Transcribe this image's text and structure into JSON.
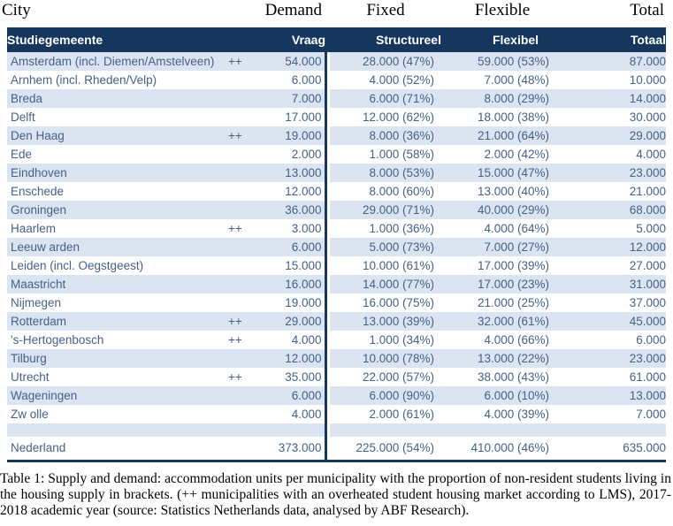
{
  "colors": {
    "header_bg": "#17365D",
    "row_alt_bg": "#DBE5F1",
    "row_bg": "#FFFFFF",
    "table_text": "#466088",
    "header_text": "#FFFFFF",
    "divider": "#17365D",
    "caption_text": "#000000"
  },
  "english_header": {
    "city": "City",
    "demand": "Demand",
    "fixed": "Fixed",
    "flexible": "Flexible",
    "total": "Total"
  },
  "table": {
    "headers": {
      "city": "Studiegemeente",
      "demand": "Vraag",
      "fixed": "Structureel",
      "flexible": "Flexibel",
      "total": "Totaal"
    },
    "rows": [
      {
        "city": "Amsterdam (incl. Diemen/Amstelveen)",
        "marker": "++",
        "demand": "54.000",
        "fixed": "28.000 (47%)",
        "flexible": "59.000 (53%)",
        "total": "87.000"
      },
      {
        "city": "Arnhem (incl. Rheden/Velp)",
        "marker": "",
        "demand": "6.000",
        "fixed": "4.000 (52%)",
        "flexible": "7.000 (48%)",
        "total": "10.000"
      },
      {
        "city": "Breda",
        "marker": "",
        "demand": "7.000",
        "fixed": "6.000 (71%)",
        "flexible": "8.000 (29%)",
        "total": "14.000"
      },
      {
        "city": "Delft",
        "marker": "",
        "demand": "17.000",
        "fixed": "12.000 (62%)",
        "flexible": "18.000 (38%)",
        "total": "30.000"
      },
      {
        "city": "Den Haag",
        "marker": "++",
        "demand": "19.000",
        "fixed": "8.000 (36%)",
        "flexible": "21.000 (64%)",
        "total": "29.000"
      },
      {
        "city": "Ede",
        "marker": "",
        "demand": "2.000",
        "fixed": "1.000 (58%)",
        "flexible": "2.000 (42%)",
        "total": "4.000"
      },
      {
        "city": "Eindhoven",
        "marker": "",
        "demand": "13.000",
        "fixed": "8.000 (53%)",
        "flexible": "15.000 (47%)",
        "total": "23.000"
      },
      {
        "city": "Enschede",
        "marker": "",
        "demand": "12.000",
        "fixed": "8.000 (60%)",
        "flexible": "13.000 (40%)",
        "total": "21.000"
      },
      {
        "city": "Groningen",
        "marker": "",
        "demand": "36.000",
        "fixed": "29.000 (71%)",
        "flexible": "40.000 (29%)",
        "total": "68.000"
      },
      {
        "city": "Haarlem",
        "marker": "++",
        "demand": "3.000",
        "fixed": "1.000 (36%)",
        "flexible": "4.000 (64%)",
        "total": "5.000"
      },
      {
        "city": "Leeuw arden",
        "marker": "",
        "demand": "6.000",
        "fixed": "5.000 (73%)",
        "flexible": "7.000 (27%)",
        "total": "12.000"
      },
      {
        "city": "Leiden (incl. Oegstgeest)",
        "marker": "",
        "demand": "15.000",
        "fixed": "10.000 (61%)",
        "flexible": "17.000 (39%)",
        "total": "27.000"
      },
      {
        "city": "Maastricht",
        "marker": "",
        "demand": "16.000",
        "fixed": "14.000 (77%)",
        "flexible": "17.000 (23%)",
        "total": "31.000"
      },
      {
        "city": "Nijmegen",
        "marker": "",
        "demand": "19.000",
        "fixed": "16.000 (75%)",
        "flexible": "21.000 (25%)",
        "total": "37.000"
      },
      {
        "city": "Rotterdam",
        "marker": "++",
        "demand": "29.000",
        "fixed": "13.000 (39%)",
        "flexible": "32.000 (61%)",
        "total": "45.000"
      },
      {
        "city": "'s-Hertogenbosch",
        "marker": "++",
        "demand": "4.000",
        "fixed": "1.000 (34%)",
        "flexible": "4.000 (66%)",
        "total": "6.000"
      },
      {
        "city": "Tilburg",
        "marker": "",
        "demand": "12.000",
        "fixed": "10.000 (78%)",
        "flexible": "13.000 (22%)",
        "total": "23.000"
      },
      {
        "city": "Utrecht",
        "marker": "++",
        "demand": "35.000",
        "fixed": "22.000 (57%)",
        "flexible": "38.000 (43%)",
        "total": "61.000"
      },
      {
        "city": "Wageningen",
        "marker": "",
        "demand": "6.000",
        "fixed": "6.000 (90%)",
        "flexible": "6.000 (10%)",
        "total": "13.000"
      },
      {
        "city": "Zw olle",
        "marker": "",
        "demand": "4.000",
        "fixed": "2.000 (61%)",
        "flexible": "4.000 (39%)",
        "total": "7.000"
      }
    ],
    "total_row": {
      "city": "Nederland",
      "marker": "",
      "demand": "373.000",
      "fixed": "225.000 (54%)",
      "flexible": "410.000 (46%)",
      "total": "635.000"
    }
  },
  "caption": {
    "text": "Table 1: Supply and demand: accommodation units per municipality with the proportion of non-resident students living in the housing supply in brackets. (++ municipalities with an overheated student housing market according to LMS), 2017-2018 academic year (source: Statistics Netherlands data, analysed by ABF Research)."
  }
}
